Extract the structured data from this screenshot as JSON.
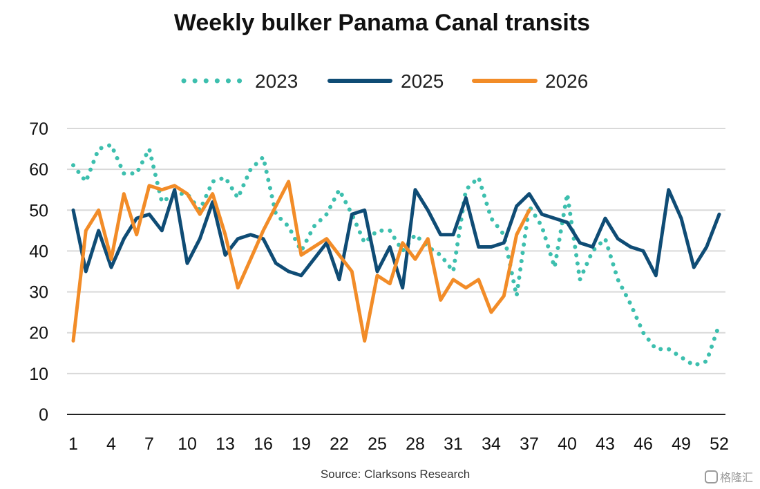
{
  "chart_data": {
    "type": "line",
    "title": "Weekly bulker Panama Canal transits",
    "xlabel": "",
    "ylabel": "",
    "source": "Source: Clarksons Research",
    "watermark": "格隆汇",
    "ylim": [
      0,
      70
    ],
    "yticks": [
      "0",
      "10",
      "20",
      "30",
      "40",
      "50",
      "60",
      "70"
    ],
    "xticks": [
      "1",
      "4",
      "7",
      "10",
      "13",
      "16",
      "19",
      "22",
      "25",
      "28",
      "31",
      "34",
      "37",
      "40",
      "43",
      "46",
      "49",
      "52"
    ],
    "xlim": [
      1,
      52
    ],
    "grid": true,
    "legend_position": "top",
    "series": [
      {
        "name": "2023",
        "style": "dotted",
        "color": "#3dbfae",
        "x": [
          1,
          2,
          3,
          4,
          5,
          6,
          7,
          8,
          9,
          10,
          11,
          12,
          13,
          14,
          15,
          16,
          17,
          18,
          19,
          20,
          21,
          22,
          23,
          24,
          25,
          26,
          27,
          28,
          29,
          30,
          31,
          32,
          33,
          34,
          35,
          36,
          37,
          38,
          39,
          40,
          41,
          42,
          43,
          44,
          45,
          46,
          47,
          48,
          49,
          50,
          51,
          52
        ],
        "values": [
          61,
          57,
          65,
          66,
          59,
          59,
          65,
          52,
          54,
          54,
          50,
          57,
          58,
          53,
          60,
          63,
          49,
          46,
          40,
          46,
          49,
          55,
          49,
          42,
          45,
          45,
          40,
          44,
          41,
          39,
          35,
          55,
          58,
          48,
          44,
          29,
          51,
          46,
          36,
          54,
          33,
          40,
          43,
          33,
          27,
          20,
          16,
          16,
          14,
          12,
          13,
          22
        ]
      },
      {
        "name": "2025",
        "style": "solid",
        "color": "#0f4c75",
        "x": [
          1,
          2,
          3,
          4,
          5,
          6,
          7,
          8,
          9,
          10,
          11,
          12,
          13,
          14,
          15,
          16,
          17,
          18,
          19,
          20,
          21,
          22,
          23,
          24,
          25,
          26,
          27,
          28,
          29,
          30,
          31,
          32,
          33,
          34,
          35,
          36,
          37,
          38,
          39,
          40,
          41,
          42,
          43,
          44,
          45,
          46,
          47,
          48,
          49,
          50,
          51,
          52
        ],
        "values": [
          50,
          35,
          45,
          36,
          43,
          48,
          49,
          45,
          55,
          37,
          43,
          52,
          39,
          43,
          44,
          43,
          37,
          35,
          34,
          38,
          42,
          33,
          49,
          50,
          35,
          41,
          31,
          55,
          50,
          44,
          44,
          53,
          41,
          41,
          42,
          51,
          54,
          49,
          48,
          47,
          42,
          41,
          48,
          43,
          41,
          40,
          34,
          55,
          48,
          36,
          41,
          49
        ]
      },
      {
        "name": "2026",
        "style": "solid",
        "color": "#f28c28",
        "x": [
          1,
          2,
          3,
          4,
          5,
          6,
          7,
          8,
          9,
          10,
          11,
          12,
          13,
          14,
          15,
          16,
          17,
          18,
          19,
          20,
          21,
          22,
          23,
          24,
          25,
          26,
          27,
          28,
          29,
          30,
          31,
          32,
          33,
          34,
          35,
          36,
          37
        ],
        "values": [
          18,
          45,
          50,
          38,
          54,
          44,
          56,
          55,
          56,
          54,
          49,
          54,
          44,
          31,
          38,
          45,
          51,
          57,
          39,
          41,
          43,
          39,
          35,
          18,
          34,
          32,
          42,
          38,
          43,
          28,
          33,
          31,
          33,
          25,
          29,
          44,
          50
        ]
      }
    ]
  }
}
